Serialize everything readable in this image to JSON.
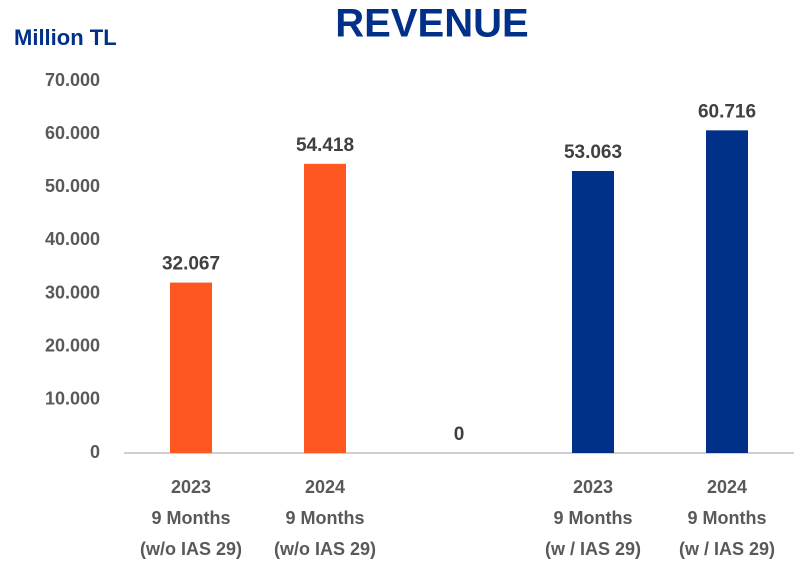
{
  "chart_data": {
    "type": "bar",
    "title": "REVENUE",
    "y_label": "Million TL",
    "categories": [
      [
        "2023",
        "9 Months",
        "(w/o IAS 29)"
      ],
      [
        "2024",
        "9 Months",
        "(w/o IAS 29)"
      ],
      null,
      [
        "2023",
        "9 Months",
        "(w / IAS 29)"
      ],
      [
        "2024",
        "9 Months",
        "(w / IAS 29)"
      ]
    ],
    "values": [
      32067,
      54418,
      0,
      53063,
      60716
    ],
    "value_labels": [
      "32.067",
      "54.418",
      "0",
      "53.063",
      "60.716"
    ],
    "colors": [
      "#ff5722",
      "#ff5722",
      null,
      "#003087",
      "#003087"
    ],
    "ylim": [
      0,
      70000
    ],
    "yticks": [
      0,
      {
        "value": 10000,
        "label": "10.000"
      },
      {
        "value": 20000,
        "label": "20.000"
      },
      {
        "value": 30000,
        "label": "30.000"
      },
      {
        "value": 40000,
        "label": "40.000"
      },
      {
        "value": 50000,
        "label": "50.000"
      },
      {
        "value": 60000,
        "label": "60.000"
      },
      {
        "value": 70000,
        "label": "70.000"
      }
    ],
    "grid": false
  }
}
